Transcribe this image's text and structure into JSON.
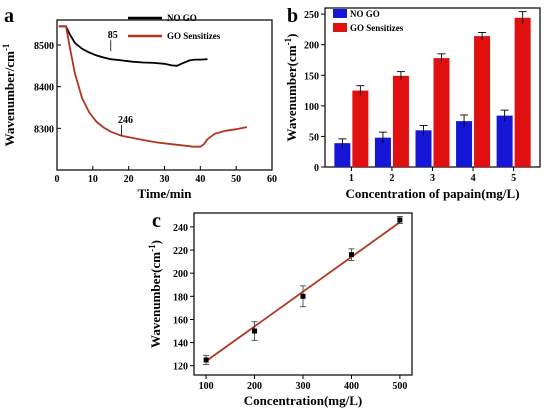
{
  "chart_data": [
    {
      "panel": "a",
      "type": "line",
      "xlabel": "Time/min",
      "ylabel": "Wavenumber/cm⁻¹",
      "xlim": [
        0,
        60
      ],
      "ylim": [
        8200,
        8560
      ],
      "xticks": [
        0,
        10,
        20,
        30,
        40,
        50,
        60
      ],
      "yticks": [
        8300,
        8400,
        8500
      ],
      "legend_position": "top-right",
      "annotations": [
        {
          "text": "85",
          "x": 15,
          "y": 8478
        },
        {
          "text": "246",
          "x": 18,
          "y": 8275
        }
      ],
      "series": [
        {
          "name": "NO GO",
          "color": "#000000",
          "x": [
            0.5,
            1.5,
            2.5,
            3.5,
            5,
            7,
            9,
            11,
            13,
            15,
            18,
            21,
            24,
            27,
            30,
            32,
            33.5,
            35,
            37,
            38.5,
            40,
            42
          ],
          "y": [
            8545,
            8545,
            8545,
            8527,
            8505,
            8491,
            8482,
            8475,
            8470,
            8466,
            8463,
            8460,
            8458,
            8457,
            8455,
            8451,
            8450,
            8456,
            8463,
            8465,
            8465,
            8466
          ]
        },
        {
          "name": "GO Sensitizes",
          "color": "#b23520",
          "x": [
            0.5,
            1.5,
            2.5,
            3.5,
            5,
            7,
            9,
            11,
            13,
            15,
            18,
            21,
            24,
            28,
            32,
            36,
            38,
            40,
            41,
            42,
            44,
            47,
            50,
            53
          ],
          "y": [
            8545,
            8545,
            8545,
            8498,
            8432,
            8372,
            8338,
            8316,
            8302,
            8292,
            8282,
            8277,
            8272,
            8266,
            8262,
            8258,
            8256,
            8256,
            8262,
            8274,
            8287,
            8294,
            8298,
            8303
          ]
        }
      ]
    },
    {
      "panel": "b",
      "type": "bar",
      "xlabel": "Concentration of papain(mg/L)",
      "ylabel": "Wavenumber(cm⁻¹)",
      "categories": [
        "1",
        "2",
        "3",
        "4",
        "5"
      ],
      "ylim": [
        0,
        260
      ],
      "yticks": [
        0,
        50,
        100,
        150,
        200,
        250
      ],
      "legend_position": "top-left",
      "series": [
        {
          "name": "NO GO",
          "color": "#1616d6",
          "values": [
            39,
            48,
            60,
            75,
            84
          ],
          "errors": [
            7,
            9,
            8,
            10,
            9
          ]
        },
        {
          "name": "GO Sensitizes",
          "color": "#e01010",
          "values": [
            125,
            149,
            178,
            214,
            244
          ],
          "errors": [
            8,
            7,
            7,
            6,
            10
          ]
        }
      ]
    },
    {
      "panel": "c",
      "type": "scatter",
      "xlabel": "Concentration(mg/L)",
      "ylabel": "Wavenumber(cm⁻¹)",
      "xlim": [
        75,
        525
      ],
      "ylim": [
        112,
        252
      ],
      "xticks": [
        100,
        200,
        300,
        400,
        500
      ],
      "yticks": [
        120,
        140,
        160,
        180,
        200,
        220,
        240
      ],
      "points": [
        {
          "x": 100,
          "y": 125,
          "error": 4
        },
        {
          "x": 200,
          "y": 150,
          "error": 8
        },
        {
          "x": 300,
          "y": 180,
          "error": 9
        },
        {
          "x": 400,
          "y": 216,
          "error": 5
        },
        {
          "x": 500,
          "y": 246,
          "error": 3
        }
      ],
      "fit_line": {
        "color": "#b23520",
        "x": [
          100,
          500
        ],
        "y": [
          124,
          244
        ]
      }
    }
  ]
}
